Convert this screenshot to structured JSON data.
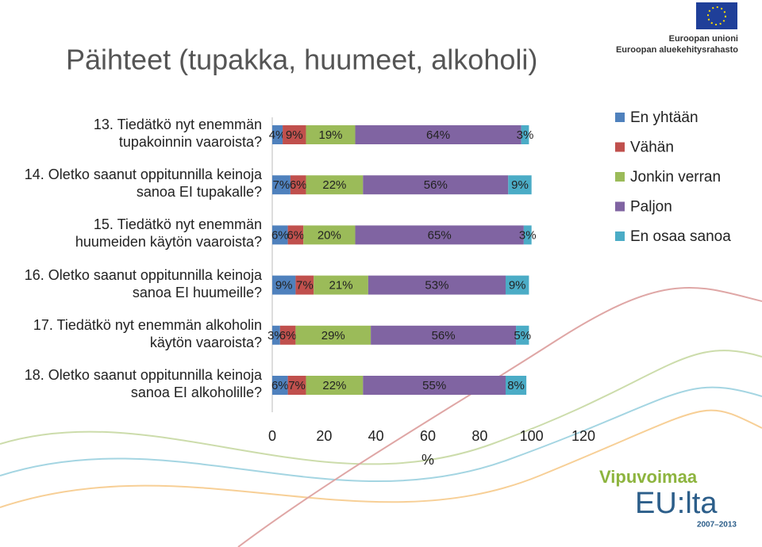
{
  "chart_data": {
    "type": "stacked-bar-horizontal",
    "title": "Päihteet (tupakka, huumeet, alkoholi)",
    "categories": [
      "13. Tiedätkö nyt enemmän tupakoinnin vaaroista?",
      "14. Oletko saanut oppitunnilla keinoja sanoa EI tupakalle?",
      "15. Tiedätkö nyt enemmän huumeiden käytön vaaroista?",
      "16. Oletko saanut oppitunnilla keinoja sanoa EI huumeille?",
      "17. Tiedätkö nyt enemmän alkoholin käytön vaaroista?",
      "18. Oletko saanut oppitunnilla keinoja sanoa EI alkoholille?"
    ],
    "series": [
      {
        "name": "En yhtään",
        "color": "#4f81bd",
        "values": [
          4,
          7,
          6,
          9,
          3,
          6
        ],
        "value_labels": [
          "4%",
          "7%",
          "6%",
          "9%",
          "3%",
          "6%"
        ]
      },
      {
        "name": "Vähän",
        "color": "#c0504d",
        "values": [
          9,
          6,
          6,
          7,
          6,
          7
        ],
        "value_labels": [
          "9%",
          "6%",
          "6%",
          "7%",
          "6%",
          "7%"
        ]
      },
      {
        "name": "Jonkin verran",
        "color": "#9bbb59",
        "values": [
          19,
          22,
          20,
          21,
          29,
          22
        ],
        "value_labels": [
          "19%",
          "22%",
          "20%",
          "21%",
          "29%",
          "22%"
        ]
      },
      {
        "name": "Paljon",
        "color": "#8064a2",
        "values": [
          64,
          56,
          65,
          53,
          56,
          55
        ],
        "value_labels": [
          "64%",
          "56%",
          "65%",
          "53%",
          "56%",
          "55%"
        ]
      },
      {
        "name": "En osaa sanoa",
        "color": "#4bacc6",
        "values": [
          3,
          9,
          3,
          9,
          5,
          8
        ],
        "value_labels": [
          "3%",
          "9%",
          "3%",
          "9%",
          "5%",
          "8%"
        ]
      }
    ],
    "xlabel": "%",
    "xlim": [
      0,
      120
    ],
    "xticks": [
      0,
      20,
      40,
      60,
      80,
      100,
      120
    ],
    "legend": "right"
  },
  "logos": {
    "eu_line1": "Euroopan unioni",
    "eu_line2": "Euroopan aluekehitysrahasto",
    "vipu": "Vipuvoimaa",
    "eulta": "EU:lta",
    "years": "2007–2013"
  }
}
